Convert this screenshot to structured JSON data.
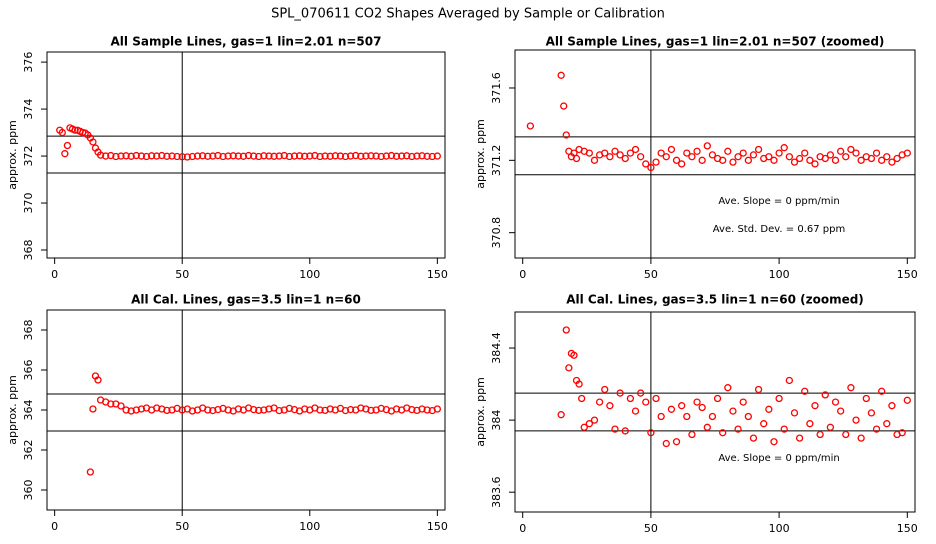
{
  "title": "SPL_070611  CO2 Shapes Averaged by Sample or Calibration",
  "chart_data": [
    {
      "type": "scatter",
      "title": "All Sample Lines, gas=1 lin=2.01 n=507",
      "y_label": "approx. ppm",
      "color": "#ff0000",
      "xlim": [
        -3,
        153
      ],
      "xticks": [
        0,
        50,
        100,
        150
      ],
      "ylim": [
        367.66,
        376.43
      ],
      "yticks": [
        368,
        370,
        372,
        374,
        376
      ],
      "hlines": [
        372.85,
        371.28
      ],
      "vlines": [
        50
      ],
      "annotations": [],
      "x": [
        2,
        3,
        4,
        5,
        6,
        7,
        8,
        9,
        10,
        11,
        12,
        13,
        14,
        15,
        16,
        17,
        18,
        20,
        22,
        24,
        26,
        28,
        30,
        32,
        34,
        36,
        38,
        40,
        42,
        44,
        46,
        48,
        50,
        52,
        54,
        56,
        58,
        60,
        62,
        64,
        66,
        68,
        70,
        72,
        74,
        76,
        78,
        80,
        82,
        84,
        86,
        88,
        90,
        92,
        94,
        96,
        98,
        100,
        102,
        104,
        106,
        108,
        110,
        112,
        114,
        116,
        118,
        120,
        122,
        124,
        126,
        128,
        130,
        132,
        134,
        136,
        138,
        140,
        142,
        144,
        146,
        148,
        150
      ],
      "values": [
        373.1,
        373.0,
        372.1,
        372.45,
        373.2,
        373.15,
        373.1,
        373.1,
        373.05,
        373.0,
        372.98,
        372.9,
        372.77,
        372.6,
        372.34,
        372.17,
        372.04,
        372.0,
        372.02,
        371.98,
        372.0,
        372.01,
        371.99,
        372.02,
        372.0,
        371.98,
        372.01,
        372.0,
        372.02,
        371.99,
        372.0,
        371.98,
        371.97,
        371.96,
        371.98,
        372.0,
        372.01,
        371.99,
        372.0,
        372.02,
        371.98,
        372.0,
        372.01,
        372.0,
        371.99,
        372.02,
        372.0,
        371.98,
        372.01,
        372.0,
        371.99,
        372.0,
        372.02,
        371.98,
        372.0,
        372.01,
        371.99,
        372.0,
        372.02,
        371.98,
        372.0,
        371.99,
        372.01,
        372.0,
        371.98,
        372.0,
        372.02,
        371.99,
        372.0,
        372.01,
        372.0,
        371.98,
        372.0,
        372.02,
        371.99,
        372.0,
        372.01,
        371.98,
        372.0,
        372.01,
        371.99,
        371.98,
        372.0
      ]
    },
    {
      "type": "scatter",
      "title": "All Sample Lines, gas=1 lin=2.01 n=507 (zoomed)",
      "y_label": "approx. ppm",
      "color": "#ff0000",
      "xlim": [
        -3,
        153
      ],
      "xticks": [
        0,
        50,
        100,
        150
      ],
      "ylim": [
        370.66,
        371.81
      ],
      "yticks": [
        370.8,
        371.2,
        371.6
      ],
      "hlines": [
        371.33,
        371.12
      ],
      "vlines": [
        50
      ],
      "annotations": [
        "Ave. Slope =  0  ppm/min",
        "Ave. Std. Dev. =  0.67  ppm"
      ],
      "x": [
        3,
        15,
        16,
        17,
        18,
        19,
        20,
        21,
        22,
        24,
        26,
        28,
        30,
        32,
        34,
        36,
        38,
        40,
        42,
        44,
        46,
        48,
        50,
        52,
        54,
        56,
        58,
        60,
        62,
        64,
        66,
        68,
        70,
        72,
        74,
        76,
        78,
        80,
        82,
        84,
        86,
        88,
        90,
        92,
        94,
        96,
        98,
        100,
        102,
        104,
        106,
        108,
        110,
        112,
        114,
        116,
        118,
        120,
        122,
        124,
        126,
        128,
        130,
        132,
        134,
        136,
        138,
        140,
        142,
        144,
        146,
        148,
        150
      ],
      "values": [
        371.39,
        371.67,
        371.5,
        371.34,
        371.25,
        371.22,
        371.24,
        371.21,
        371.26,
        371.25,
        371.24,
        371.2,
        371.23,
        371.24,
        371.22,
        371.25,
        371.23,
        371.21,
        371.24,
        371.26,
        371.22,
        371.18,
        371.16,
        371.19,
        371.24,
        371.22,
        371.26,
        371.2,
        371.18,
        371.24,
        371.22,
        371.25,
        371.2,
        371.28,
        371.23,
        371.21,
        371.2,
        371.25,
        371.19,
        371.22,
        371.24,
        371.2,
        371.23,
        371.26,
        371.21,
        371.22,
        371.2,
        371.24,
        371.27,
        371.22,
        371.19,
        371.21,
        371.24,
        371.2,
        371.18,
        371.22,
        371.21,
        371.23,
        371.2,
        371.25,
        371.22,
        371.26,
        371.24,
        371.2,
        371.22,
        371.21,
        371.24,
        371.2,
        371.22,
        371.19,
        371.21,
        371.23,
        371.24
      ]
    },
    {
      "type": "scatter",
      "title": "All Cal. Lines, gas=3.5 lin=1 n=60",
      "y_label": "approx. ppm",
      "color": "#ff0000",
      "xlim": [
        -3,
        153
      ],
      "xticks": [
        0,
        50,
        100,
        150
      ],
      "ylim": [
        359.0,
        369.0
      ],
      "yticks": [
        360,
        362,
        364,
        366,
        368
      ],
      "hlines": [
        364.8,
        362.95
      ],
      "vlines": [
        50
      ],
      "annotations": [],
      "x": [
        14,
        15,
        16,
        17,
        18,
        20,
        22,
        24,
        26,
        28,
        30,
        32,
        34,
        36,
        38,
        40,
        42,
        44,
        46,
        48,
        50,
        52,
        54,
        56,
        58,
        60,
        62,
        64,
        66,
        68,
        70,
        72,
        74,
        76,
        78,
        80,
        82,
        84,
        86,
        88,
        90,
        92,
        94,
        96,
        98,
        100,
        102,
        104,
        106,
        108,
        110,
        112,
        114,
        116,
        118,
        120,
        122,
        124,
        126,
        128,
        130,
        132,
        134,
        136,
        138,
        140,
        142,
        144,
        146,
        148,
        150
      ],
      "values": [
        360.9,
        364.05,
        365.7,
        365.5,
        364.5,
        364.4,
        364.3,
        364.3,
        364.2,
        364.0,
        363.95,
        364.0,
        364.05,
        364.1,
        364.0,
        364.1,
        364.05,
        363.98,
        364.0,
        364.08,
        364.0,
        364.05,
        363.95,
        364.0,
        364.1,
        364.0,
        363.97,
        364.02,
        364.08,
        364.0,
        363.95,
        364.05,
        364.0,
        364.1,
        364.02,
        363.98,
        364.0,
        364.05,
        364.1,
        363.97,
        364.0,
        364.08,
        364.02,
        363.95,
        364.05,
        364.0,
        364.1,
        364.0,
        363.98,
        364.05,
        364.0,
        364.08,
        363.97,
        364.02,
        364.0,
        364.1,
        364.05,
        363.98,
        364.0,
        364.08,
        364.02,
        363.95,
        364.05,
        364.0,
        364.1,
        364.02,
        363.98,
        364.05,
        364.0,
        363.97,
        364.05
      ]
    },
    {
      "type": "scatter",
      "title": "All Cal. Lines, gas=3.5 lin=1 n=60 (zoomed)",
      "y_label": "approx. ppm",
      "color": "#ff0000",
      "xlim": [
        -3,
        153
      ],
      "xticks": [
        0,
        50,
        100,
        150
      ],
      "ylim": [
        383.49,
        384.6
      ],
      "yticks": [
        383.6,
        384.0,
        384.4
      ],
      "hlines": [
        384.15,
        383.94
      ],
      "vlines": [
        50
      ],
      "annotations": [
        "Ave. Slope =  0  ppm/min"
      ],
      "x": [
        15,
        17,
        18,
        19,
        20,
        21,
        22,
        23,
        24,
        26,
        28,
        30,
        32,
        34,
        36,
        38,
        40,
        42,
        44,
        46,
        48,
        50,
        52,
        54,
        56,
        58,
        60,
        62,
        64,
        66,
        68,
        70,
        72,
        74,
        76,
        78,
        80,
        82,
        84,
        86,
        88,
        90,
        92,
        94,
        96,
        98,
        100,
        102,
        104,
        106,
        108,
        110,
        112,
        114,
        116,
        118,
        120,
        122,
        124,
        126,
        128,
        130,
        132,
        134,
        136,
        138,
        140,
        142,
        144,
        146,
        148,
        150
      ],
      "values": [
        384.03,
        384.5,
        384.29,
        384.37,
        384.36,
        384.22,
        384.2,
        384.12,
        383.96,
        383.98,
        384.0,
        384.1,
        384.17,
        384.08,
        383.95,
        384.15,
        383.94,
        384.12,
        384.05,
        384.15,
        384.1,
        383.93,
        384.12,
        384.02,
        383.87,
        384.06,
        383.88,
        384.08,
        384.02,
        383.92,
        384.1,
        384.07,
        383.96,
        384.02,
        384.12,
        383.93,
        384.18,
        384.05,
        383.95,
        384.1,
        384.02,
        383.9,
        384.17,
        383.98,
        384.06,
        383.88,
        384.12,
        383.95,
        384.22,
        384.04,
        383.9,
        384.16,
        383.98,
        384.08,
        383.92,
        384.14,
        383.96,
        384.1,
        384.05,
        383.92,
        384.18,
        384.0,
        383.9,
        384.12,
        384.04,
        383.95,
        384.16,
        383.98,
        384.08,
        383.92,
        383.93,
        384.11
      ]
    }
  ]
}
